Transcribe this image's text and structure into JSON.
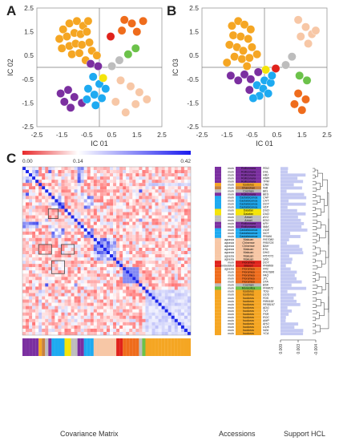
{
  "panels": {
    "A": {
      "label": "A"
    },
    "B": {
      "label": "B"
    },
    "C": {
      "label": "C"
    }
  },
  "scatter_A": {
    "xlabel": "IC 01",
    "ylabel": "IC 02"
  },
  "scatter_B": {
    "xlabel": "IC 01",
    "ylabel": "IC 03"
  },
  "heatmap": {
    "colorbar_ticks": [
      "0.00",
      "0.14",
      "0.42"
    ],
    "footer": "Covariance Matrix"
  },
  "accessions_footer": "Accessions",
  "support_footer": "Support HCL",
  "support_axis_ticks": [
    "0.009",
    "0.003",
    "-0.004"
  ],
  "colors": {
    "purple": "#7b2fa0",
    "orange": "#f5a623",
    "sky": "#1eaaf1",
    "yellow": "#f4e409",
    "grey": "#bdbdbd",
    "peach": "#f7c7a6",
    "red": "#e0221b",
    "darkorange": "#ef6c1c",
    "green": "#6cc24a",
    "brown": "#c8813f",
    "lavender": "#a58fd6"
  },
  "accessions": [
    {
      "type": "mulo",
      "group": "Rollizonara",
      "code": "PDG",
      "color": "purple"
    },
    {
      "type": "mulo",
      "group": "Rollizonara",
      "code": "DUL",
      "color": "purple"
    },
    {
      "type": "mulo",
      "group": "Rollizonara",
      "code": "HBJ",
      "color": "purple"
    },
    {
      "type": "mulo",
      "group": "Rollizonara",
      "code": "PMR",
      "color": "purple"
    },
    {
      "type": "mulo",
      "group": "Rollizonara",
      "code": "TPM",
      "color": "purple"
    },
    {
      "type": "mulo",
      "group": "Isodoros",
      "code": "CRE",
      "color": "orange"
    },
    {
      "type": "mulo",
      "group": "Chanchan",
      "code": "INB",
      "color": "brown"
    },
    {
      "type": "mulo",
      "group": "Cosman",
      "code": "BEL",
      "color": "grey"
    },
    {
      "type": "mulo",
      "group": "Rollizonara",
      "code": "BES",
      "color": "purple"
    },
    {
      "type": "mulo",
      "group": "Castalsiconoa",
      "code": "CHF",
      "color": "sky"
    },
    {
      "type": "mulo",
      "group": "Castalsiconoa",
      "code": "CHT",
      "color": "sky"
    },
    {
      "type": "mulo",
      "group": "Castalsiconoa",
      "code": "DOY",
      "color": "sky"
    },
    {
      "type": "mulo",
      "group": "Castalsiconoa",
      "code": "VEP",
      "color": "sky"
    },
    {
      "type": "mulo",
      "group": "Dalafan",
      "code": "DUD",
      "color": "yellow"
    },
    {
      "type": "mulo",
      "group": "Dalafan",
      "code": "DUD",
      "color": "yellow"
    },
    {
      "type": "mulo",
      "group": "Amori",
      "code": "AYO",
      "color": "grey"
    },
    {
      "type": "mulo",
      "group": "Amori",
      "code": "EDO",
      "color": "grey"
    },
    {
      "type": "mulo",
      "group": "Rollizonara",
      "code": "KRY",
      "color": "purple"
    },
    {
      "type": "mulo",
      "group": "Rollizonara",
      "code": "MAK",
      "color": "purple"
    },
    {
      "type": "mulo",
      "group": "Castalsiconoa",
      "code": "OGE",
      "color": "sky"
    },
    {
      "type": "mulo",
      "group": "Castalsiconoa",
      "code": "NOY",
      "color": "sky"
    },
    {
      "type": "mulo",
      "group": "Castalsiconoa",
      "code": "PHMI6",
      "color": "sky"
    },
    {
      "type": "agrasta",
      "group": "Makuan",
      "code": "PI57080",
      "color": "peach"
    },
    {
      "type": "agrasta",
      "group": "Chinense",
      "code": "PI59725",
      "color": "peach"
    },
    {
      "type": "agrasta",
      "group": "Chinense",
      "code": "BAH",
      "color": "peach"
    },
    {
      "type": "agrasta",
      "group": "Makuan",
      "code": "ESL",
      "color": "peach"
    },
    {
      "type": "agrasta",
      "group": "Makuan",
      "code": "DHG",
      "color": "peach"
    },
    {
      "type": "agrasta",
      "group": "Makuan",
      "code": "PI57071",
      "color": "peach"
    },
    {
      "type": "agrasta",
      "group": "Makuan",
      "code": "SAS",
      "color": "peach"
    },
    {
      "type": "mulo",
      "group": "Floramea",
      "code": "DOY",
      "color": "red"
    },
    {
      "type": "embedded",
      "group": "Biseed",
      "code": "PHMI69",
      "color": "red"
    },
    {
      "type": "agrasta",
      "group": "Floramea",
      "code": "FRC",
      "color": "darkorange"
    },
    {
      "type": "mulo",
      "group": "Floramea",
      "code": "PHOS86",
      "color": "darkorange"
    },
    {
      "type": "mulo",
      "group": "Floramea",
      "code": "FAQ",
      "color": "darkorange"
    },
    {
      "type": "mulo",
      "group": "Floramea",
      "code": "JYL",
      "color": "darkorange"
    },
    {
      "type": "mulo",
      "group": "Floramea",
      "code": "STA",
      "color": "darkorange"
    },
    {
      "type": "mulo",
      "group": "Cosman",
      "code": "BSK",
      "color": "grey"
    },
    {
      "type": "mulo",
      "group": "Monsofica",
      "code": "PHMI72",
      "color": "green"
    },
    {
      "type": "mulo",
      "group": "Isodoros",
      "code": "TDG",
      "color": "orange"
    },
    {
      "type": "mulo",
      "group": "Isodoros",
      "code": "GOS",
      "color": "orange"
    },
    {
      "type": "mulo",
      "group": "Isodoros",
      "code": "FDS",
      "color": "orange"
    },
    {
      "type": "mulo",
      "group": "Isodoros",
      "code": "PI89158",
      "color": "orange"
    },
    {
      "type": "mulo",
      "group": "Isodoros",
      "code": "PE58167",
      "color": "orange"
    },
    {
      "type": "mulo",
      "group": "Isodoros",
      "code": "ADG",
      "color": "orange"
    },
    {
      "type": "mulo",
      "group": "Isodoros",
      "code": "TVT",
      "color": "orange"
    },
    {
      "type": "mulo",
      "group": "Isodoros",
      "code": "PSR",
      "color": "orange"
    },
    {
      "type": "mulo",
      "group": "Isodoros",
      "code": "ROC",
      "color": "orange"
    },
    {
      "type": "mulo",
      "group": "Isodoros",
      "code": "AMP",
      "color": "orange"
    },
    {
      "type": "mulo",
      "group": "Isodoros",
      "code": "AHO",
      "color": "orange"
    },
    {
      "type": "mulo",
      "group": "Isodoros",
      "code": "GOK",
      "color": "orange"
    },
    {
      "type": "mulo",
      "group": "Isodoros",
      "code": "NZA",
      "color": "orange"
    },
    {
      "type": "mulo",
      "group": "Isodoros",
      "code": "YCA",
      "color": "orange"
    }
  ],
  "chart_data": [
    {
      "type": "scatter",
      "panel": "A",
      "xlabel": "IC 01",
      "ylabel": "IC 02",
      "xlim": [
        -2.5,
        2.5
      ],
      "ylim": [
        -2.5,
        2.5
      ],
      "xticks": [
        "-2.5",
        "-1.5",
        "-0.5",
        "0.5",
        "1.5",
        "2.5"
      ],
      "yticks": [
        "2.5",
        "1.5",
        "0.5",
        "-0.5",
        "-1.5",
        "-2.5"
      ],
      "points": [
        {
          "x": -1.45,
          "y": 1.6,
          "color": "orange"
        },
        {
          "x": -1.2,
          "y": 1.85,
          "color": "orange"
        },
        {
          "x": -0.9,
          "y": 1.95,
          "color": "orange"
        },
        {
          "x": -0.65,
          "y": 1.75,
          "color": "orange"
        },
        {
          "x": -0.45,
          "y": 1.95,
          "color": "orange"
        },
        {
          "x": -1.6,
          "y": 1.2,
          "color": "orange"
        },
        {
          "x": -1.3,
          "y": 1.3,
          "color": "orange"
        },
        {
          "x": -1.0,
          "y": 1.45,
          "color": "orange"
        },
        {
          "x": -0.75,
          "y": 1.4,
          "color": "orange"
        },
        {
          "x": -0.5,
          "y": 1.5,
          "color": "orange"
        },
        {
          "x": -1.5,
          "y": 0.8,
          "color": "orange"
        },
        {
          "x": -1.2,
          "y": 0.9,
          "color": "orange"
        },
        {
          "x": -0.95,
          "y": 1.0,
          "color": "orange"
        },
        {
          "x": -0.7,
          "y": 0.95,
          "color": "orange"
        },
        {
          "x": -0.4,
          "y": 1.05,
          "color": "orange"
        },
        {
          "x": -1.1,
          "y": 0.55,
          "color": "orange"
        },
        {
          "x": -0.8,
          "y": 0.6,
          "color": "orange"
        },
        {
          "x": -0.3,
          "y": 0.7,
          "color": "orange"
        },
        {
          "x": -0.55,
          "y": 0.3,
          "color": "orange"
        },
        {
          "x": -0.1,
          "y": 0.5,
          "color": "orange"
        },
        {
          "x": 0.45,
          "y": 1.3,
          "color": "red"
        },
        {
          "x": 1.0,
          "y": 2.0,
          "color": "darkorange"
        },
        {
          "x": 1.3,
          "y": 1.85,
          "color": "darkorange"
        },
        {
          "x": 0.9,
          "y": 1.55,
          "color": "darkorange"
        },
        {
          "x": 1.5,
          "y": 1.5,
          "color": "darkorange"
        },
        {
          "x": 1.75,
          "y": 1.95,
          "color": "darkorange"
        },
        {
          "x": 1.45,
          "y": 0.8,
          "color": "green"
        },
        {
          "x": 1.15,
          "y": 0.55,
          "color": "green"
        },
        {
          "x": 0.8,
          "y": 0.3,
          "color": "grey"
        },
        {
          "x": 0.5,
          "y": 0.05,
          "color": "grey"
        },
        {
          "x": -0.35,
          "y": 0.15,
          "color": "purple"
        },
        {
          "x": -0.05,
          "y": 0.05,
          "color": "purple"
        },
        {
          "x": -1.55,
          "y": -1.1,
          "color": "purple"
        },
        {
          "x": -1.25,
          "y": -0.95,
          "color": "purple"
        },
        {
          "x": -1.4,
          "y": -1.45,
          "color": "purple"
        },
        {
          "x": -1.0,
          "y": -1.25,
          "color": "purple"
        },
        {
          "x": -1.15,
          "y": -1.7,
          "color": "purple"
        },
        {
          "x": -0.7,
          "y": -1.5,
          "color": "purple"
        },
        {
          "x": -0.25,
          "y": -0.4,
          "color": "sky"
        },
        {
          "x": 0.0,
          "y": -0.7,
          "color": "sky"
        },
        {
          "x": -0.45,
          "y": -0.9,
          "color": "sky"
        },
        {
          "x": -0.2,
          "y": -1.15,
          "color": "sky"
        },
        {
          "x": 0.1,
          "y": -1.3,
          "color": "sky"
        },
        {
          "x": -0.5,
          "y": -1.35,
          "color": "sky"
        },
        {
          "x": 0.25,
          "y": -0.9,
          "color": "sky"
        },
        {
          "x": -0.15,
          "y": -1.6,
          "color": "sky"
        },
        {
          "x": 0.15,
          "y": -0.45,
          "color": "yellow"
        },
        {
          "x": 0.85,
          "y": -0.55,
          "color": "peach"
        },
        {
          "x": 1.25,
          "y": -0.8,
          "color": "peach"
        },
        {
          "x": 1.6,
          "y": -1.05,
          "color": "peach"
        },
        {
          "x": 1.9,
          "y": -1.35,
          "color": "peach"
        },
        {
          "x": 1.45,
          "y": -1.55,
          "color": "peach"
        },
        {
          "x": 1.05,
          "y": -1.9,
          "color": "peach"
        },
        {
          "x": 0.65,
          "y": -1.45,
          "color": "peach"
        }
      ]
    },
    {
      "type": "scatter",
      "panel": "B",
      "xlabel": "IC 01",
      "ylabel": "IC 03",
      "xlim": [
        -2.5,
        2.5
      ],
      "ylim": [
        -2.5,
        2.5
      ],
      "xticks": [
        "-2.5",
        "-1.5",
        "-0.5",
        "0.5",
        "1.5",
        "2.5"
      ],
      "yticks": [
        "2.5",
        "1.5",
        "0.5",
        "-0.5",
        "-1.5",
        "-2.5"
      ],
      "points": [
        {
          "x": -1.3,
          "y": 1.75,
          "color": "orange"
        },
        {
          "x": -1.05,
          "y": 1.95,
          "color": "orange"
        },
        {
          "x": -0.8,
          "y": 1.8,
          "color": "orange"
        },
        {
          "x": -0.55,
          "y": 1.6,
          "color": "orange"
        },
        {
          "x": -1.25,
          "y": 1.35,
          "color": "orange"
        },
        {
          "x": -0.95,
          "y": 1.3,
          "color": "orange"
        },
        {
          "x": -0.65,
          "y": 1.2,
          "color": "orange"
        },
        {
          "x": -1.4,
          "y": 0.95,
          "color": "orange"
        },
        {
          "x": -1.1,
          "y": 0.85,
          "color": "orange"
        },
        {
          "x": -0.85,
          "y": 0.7,
          "color": "orange"
        },
        {
          "x": -0.5,
          "y": 0.85,
          "color": "orange"
        },
        {
          "x": -1.2,
          "y": 0.45,
          "color": "orange"
        },
        {
          "x": -0.9,
          "y": 0.35,
          "color": "orange"
        },
        {
          "x": -0.6,
          "y": 0.4,
          "color": "orange"
        },
        {
          "x": -0.3,
          "y": 0.55,
          "color": "orange"
        },
        {
          "x": -1.5,
          "y": 0.2,
          "color": "orange"
        },
        {
          "x": -0.7,
          "y": 0.05,
          "color": "orange"
        },
        {
          "x": 0.45,
          "y": -0.05,
          "color": "red"
        },
        {
          "x": 1.35,
          "y": 2.0,
          "color": "peach"
        },
        {
          "x": 1.65,
          "y": 1.7,
          "color": "peach"
        },
        {
          "x": 1.9,
          "y": 1.4,
          "color": "peach"
        },
        {
          "x": 1.45,
          "y": 1.3,
          "color": "peach"
        },
        {
          "x": 1.75,
          "y": 1.0,
          "color": "peach"
        },
        {
          "x": 2.05,
          "y": 1.55,
          "color": "peach"
        },
        {
          "x": 1.1,
          "y": 0.45,
          "color": "grey"
        },
        {
          "x": 0.85,
          "y": 0.1,
          "color": "grey"
        },
        {
          "x": 1.4,
          "y": -0.35,
          "color": "green"
        },
        {
          "x": 1.7,
          "y": -0.55,
          "color": "green"
        },
        {
          "x": 1.35,
          "y": -1.1,
          "color": "darkorange"
        },
        {
          "x": 1.65,
          "y": -1.35,
          "color": "darkorange"
        },
        {
          "x": 1.2,
          "y": -1.55,
          "color": "darkorange"
        },
        {
          "x": 1.5,
          "y": -1.8,
          "color": "darkorange"
        },
        {
          "x": 0.05,
          "y": -0.1,
          "color": "yellow"
        },
        {
          "x": -1.35,
          "y": -0.35,
          "color": "purple"
        },
        {
          "x": -1.05,
          "y": -0.55,
          "color": "purple"
        },
        {
          "x": -0.8,
          "y": -0.3,
          "color": "purple"
        },
        {
          "x": -0.55,
          "y": -0.5,
          "color": "purple"
        },
        {
          "x": -0.25,
          "y": -0.2,
          "color": "purple"
        },
        {
          "x": -0.6,
          "y": -0.95,
          "color": "purple"
        },
        {
          "x": -0.3,
          "y": -0.75,
          "color": "sky"
        },
        {
          "x": 0.0,
          "y": -0.55,
          "color": "sky"
        },
        {
          "x": -0.05,
          "y": -0.9,
          "color": "sky"
        },
        {
          "x": 0.25,
          "y": -0.65,
          "color": "sky"
        },
        {
          "x": -0.2,
          "y": -1.2,
          "color": "sky"
        },
        {
          "x": 0.15,
          "y": -1.1,
          "color": "sky"
        },
        {
          "x": -0.45,
          "y": -1.3,
          "color": "sky"
        },
        {
          "x": 0.3,
          "y": -0.35,
          "color": "sky"
        }
      ]
    },
    {
      "type": "heatmap",
      "panel": "C",
      "title": "",
      "n": 52,
      "scale": {
        "min": 0.0,
        "mid": 0.14,
        "max": 0.42,
        "colors": [
          "#e8292b",
          "#ffffff",
          "#1a1aee"
        ]
      },
      "tick_labels": [
        "0.00",
        "0.14",
        "0.42"
      ]
    }
  ]
}
